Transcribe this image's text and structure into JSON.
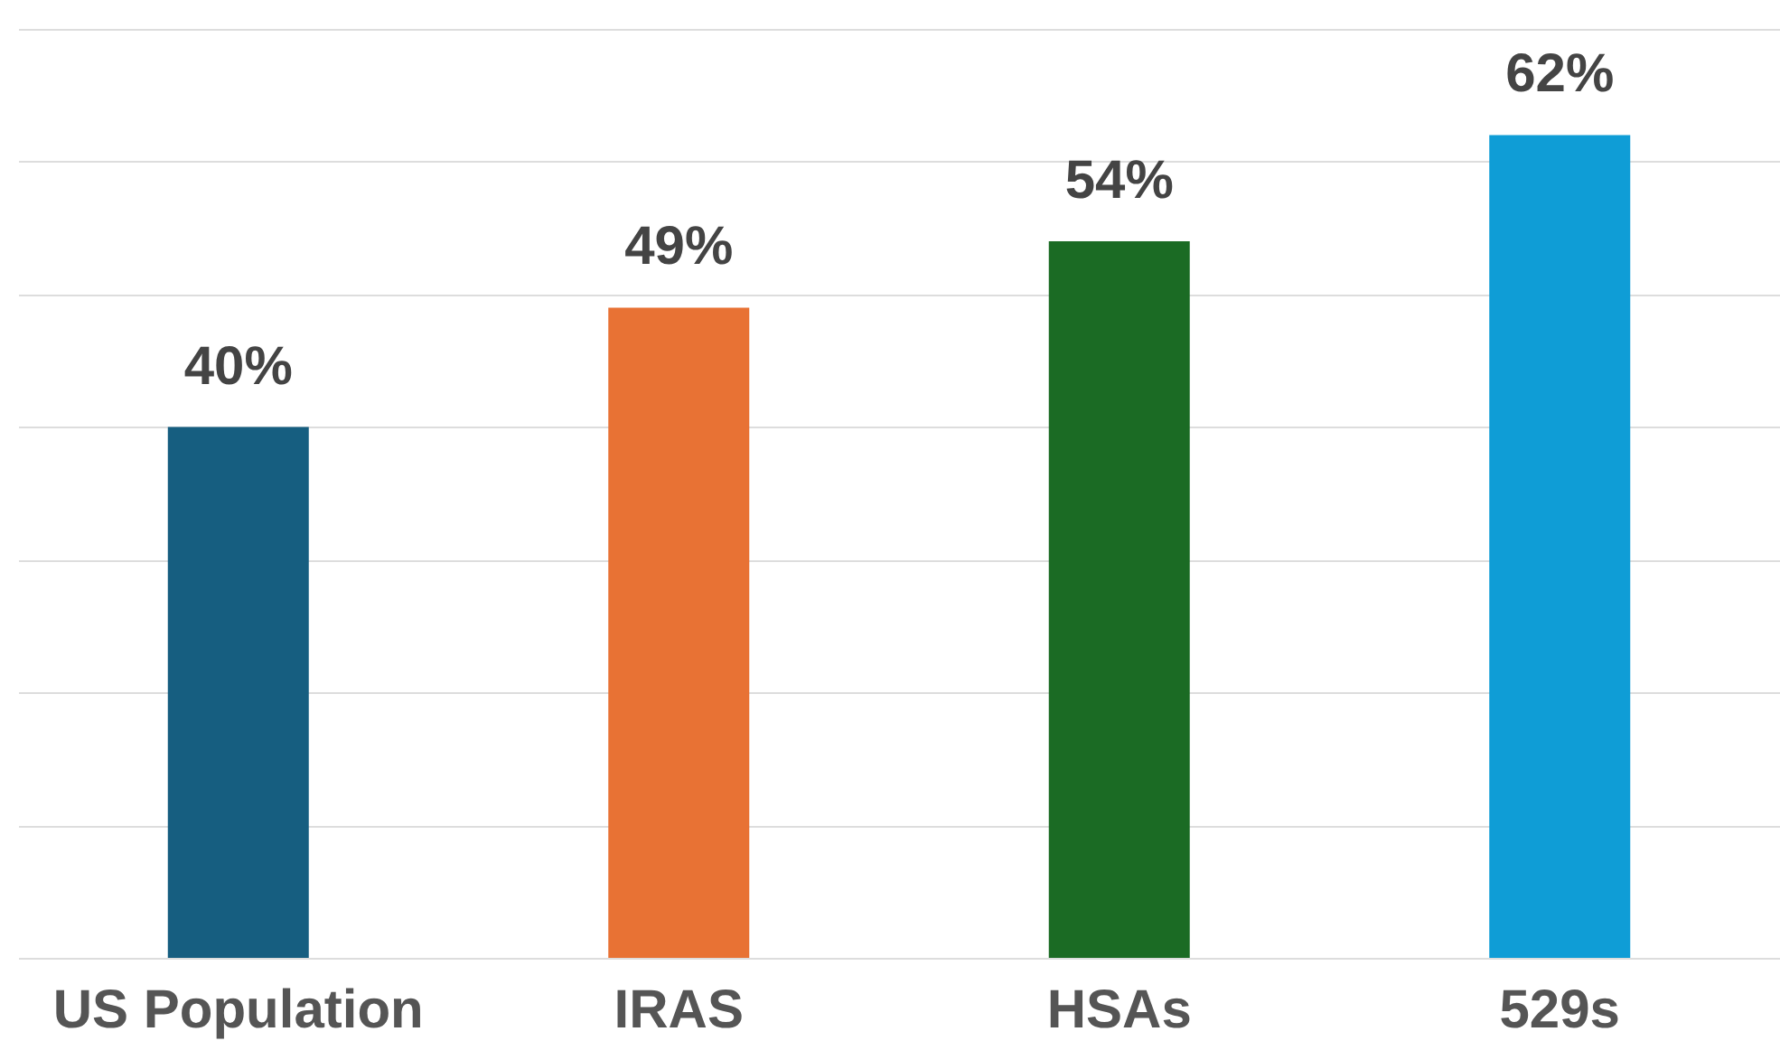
{
  "chart_data": {
    "type": "bar",
    "categories": [
      "US Population",
      "IRAS",
      "HSAs",
      "529s"
    ],
    "values": [
      40,
      49,
      54,
      62
    ],
    "colors": [
      "#165e80",
      "#e87234",
      "#1b6b24",
      "#0f9dd6"
    ],
    "value_labels": [
      "40%",
      "49%",
      "54%",
      "62%"
    ],
    "ylim": [
      0,
      70
    ],
    "yticks": [
      {
        "value": 0,
        "label": null
      },
      {
        "value": 10,
        "label": null
      },
      {
        "value": 20,
        "label": null
      },
      {
        "value": 30,
        "label": null
      },
      {
        "value": 40,
        "label": null
      },
      {
        "value": 50,
        "label": null
      },
      {
        "value": 60,
        "label": null
      },
      {
        "value": 70,
        "label": null
      }
    ],
    "grid": "y",
    "tick_labels": "x"
  }
}
